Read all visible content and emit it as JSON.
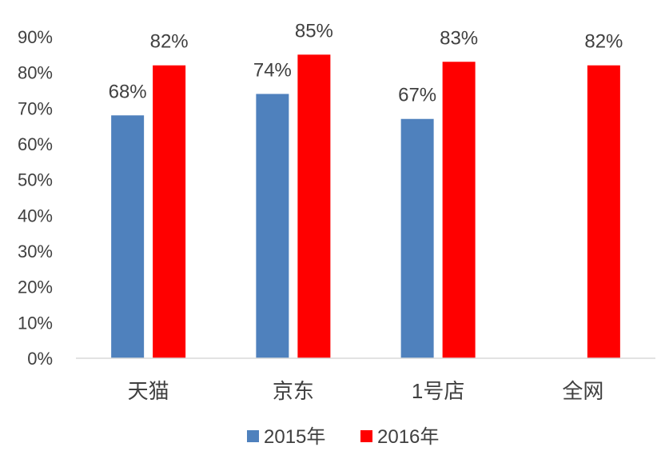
{
  "chart_data": {
    "type": "bar",
    "categories": [
      "天猫",
      "京东",
      "1号店",
      "全网"
    ],
    "series": [
      {
        "name": "2015年",
        "values": [
          68,
          74,
          67,
          null
        ],
        "color": "#4F81BD"
      },
      {
        "name": "2016年",
        "values": [
          82,
          85,
          83,
          82
        ],
        "color": "#FF0000"
      }
    ],
    "data_labels": [
      [
        "68%",
        "74%",
        "67%",
        null
      ],
      [
        "82%",
        "85%",
        "83%",
        "82%"
      ]
    ],
    "yticks": [
      "0%",
      "10%",
      "20%",
      "30%",
      "40%",
      "50%",
      "60%",
      "70%",
      "80%",
      "90%"
    ],
    "ylim": [
      0,
      90
    ],
    "title": "",
    "xlabel": "",
    "ylabel": "",
    "grid": false,
    "legend_position": "bottom",
    "axis_color": "#D9D9D9"
  }
}
